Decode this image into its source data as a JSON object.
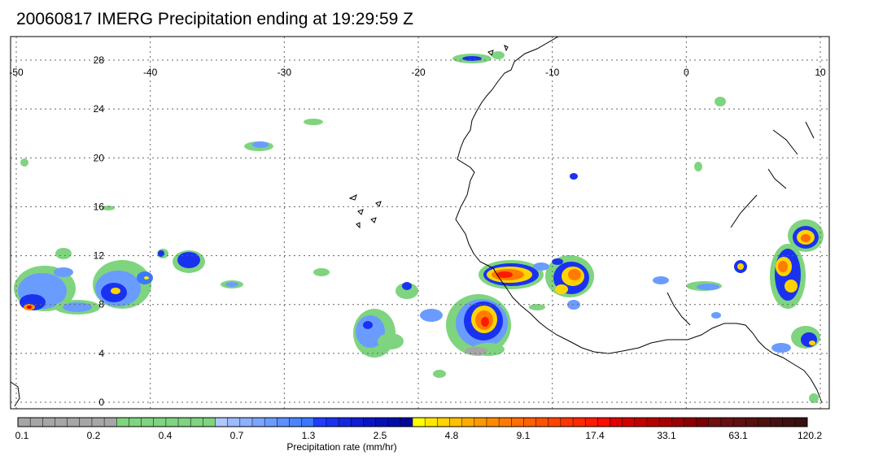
{
  "title": "20060817 IMERG Precipitation ending at 19:29:59 Z",
  "map": {
    "lon_range": [
      -50,
      10
    ],
    "lat_range": [
      -1,
      30
    ],
    "lon_ticks": [
      "-50",
      "-40",
      "-30",
      "-20",
      "-10",
      "0",
      "10"
    ],
    "lat_ticks": [
      "28",
      "24",
      "20",
      "16",
      "12",
      "8",
      "4",
      "0"
    ],
    "grid": true,
    "coastline_color": "#000000"
  },
  "colorbar": {
    "label": "Precipitation rate (mm/hr)",
    "tick_labels": [
      "0.1",
      "0.2",
      "0.4",
      "0.7",
      "1.3",
      "2.5",
      "4.8",
      "9.1",
      "17.4",
      "33.1",
      "63.1",
      "120.2"
    ],
    "colors": [
      "#a6a6a6",
      "#a6a6a6",
      "#a6a6a6",
      "#a6a6a6",
      "#a6a6a6",
      "#a6a6a6",
      "#a6a6a6",
      "#a6a6a6",
      "#7fd47f",
      "#7fd47f",
      "#7fd47f",
      "#7fd47f",
      "#7fd47f",
      "#7fd47f",
      "#7fd47f",
      "#7fd47f",
      "#b0c8ff",
      "#9cbaff",
      "#8cb0ff",
      "#7aa6ff",
      "#6a9cff",
      "#5a90ff",
      "#4a84ff",
      "#3a78ff",
      "#1f3cff",
      "#1a32f0",
      "#1428e0",
      "#0f1ed2",
      "#0a14c4",
      "#0610b6",
      "#040ca8",
      "#02089a",
      "#ffff00",
      "#ffe800",
      "#ffd400",
      "#ffc000",
      "#ffac00",
      "#ff9800",
      "#ff8a00",
      "#ff7c00",
      "#ff6e00",
      "#ff6000",
      "#ff5200",
      "#ff4400",
      "#ff3600",
      "#ff2800",
      "#ff1a00",
      "#ff0c00",
      "#e00000",
      "#d20000",
      "#c40000",
      "#b60000",
      "#a80000",
      "#9a0000",
      "#8c0000",
      "#7e0000",
      "#701010",
      "#681010",
      "#601010",
      "#581010",
      "#501010",
      "#481010",
      "#401010",
      "#381010"
    ]
  }
}
